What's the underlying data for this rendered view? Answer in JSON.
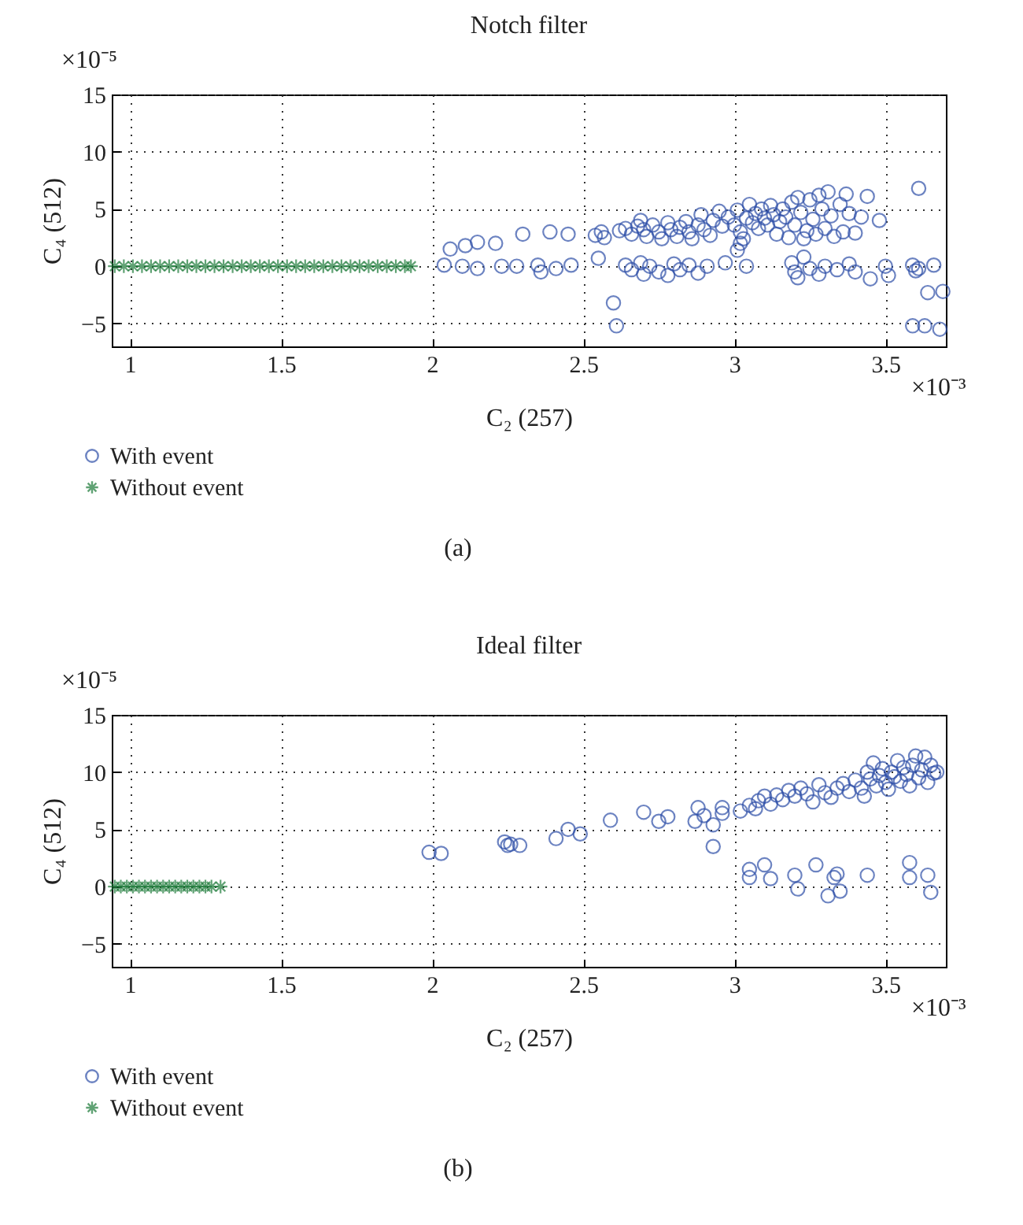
{
  "chart_data": [
    {
      "type": "scatter",
      "title": "Notch filter",
      "xlabel": "C₂ (257)",
      "ylabel": "C₄ (512)",
      "annotations": [
        "×10⁻⁵",
        "×10⁻³",
        "(a)"
      ],
      "xlim": [
        0.94,
        3.7
      ],
      "ylim": [
        -7,
        15
      ],
      "xticks": [
        1,
        1.5,
        2,
        2.5,
        3,
        3.5
      ],
      "yticks": [
        -5,
        0,
        5,
        10,
        15
      ],
      "grid": true,
      "legend": "bottom",
      "series": [
        {
          "name": "With event",
          "color": "#2e4fa8",
          "marker": "circle",
          "x": [
            2.04,
            2.1,
            2.06,
            2.11,
            2.15,
            2.21,
            2.3,
            2.39,
            2.45,
            2.54,
            2.56,
            2.57,
            2.55,
            2.6,
            2.61,
            2.15,
            2.23,
            2.28,
            2.35,
            2.36,
            2.41,
            2.46,
            3.61,
            3.59,
            3.63,
            3.68,
            3.64,
            3.69,
            2.62,
            2.64,
            2.66,
            2.68,
            2.69,
            2.7,
            2.71,
            2.73,
            2.75,
            2.76,
            2.78,
            2.79,
            2.81,
            2.82,
            2.84,
            2.85,
            2.86,
            2.88,
            2.89,
            2.9,
            2.92,
            2.93,
            2.95,
            2.96,
            2.98,
            3.0,
            3.01,
            3.02,
            3.03,
            3.04,
            3.05,
            3.06,
            3.07,
            3.08,
            3.09,
            3.1,
            3.11,
            3.12,
            3.13,
            3.14,
            3.15,
            3.16,
            3.17,
            3.18,
            3.19,
            3.2,
            3.21,
            3.22,
            3.23,
            3.24,
            3.25,
            3.26,
            3.27,
            3.28,
            3.29,
            3.3,
            3.31,
            3.32,
            3.33,
            3.35,
            3.36,
            3.37,
            3.38,
            3.4,
            3.42,
            3.44,
            3.48,
            3.01,
            3.02,
            2.64,
            2.66,
            2.69,
            2.7,
            2.72,
            2.75,
            2.78,
            2.8,
            2.82,
            2.85,
            2.88,
            2.91,
            2.97,
            3.04,
            3.19,
            3.2,
            3.21,
            3.23,
            3.25,
            3.28,
            3.3,
            3.34,
            3.38,
            3.4,
            3.45,
            3.5,
            3.51,
            3.59,
            3.6,
            3.66,
            3.61
          ],
          "values": [
            0.1,
            0,
            1.5,
            1.8,
            2.1,
            2,
            2.8,
            3,
            2.8,
            2.7,
            3,
            2.5,
            0.7,
            -3.2,
            -5.2,
            -0.2,
            0,
            0,
            0.1,
            -0.5,
            -0.2,
            0.1,
            6.8,
            -5.2,
            -5.2,
            -5.5,
            -2.3,
            -2.2,
            3.1,
            3.3,
            2.8,
            3.5,
            4,
            3.2,
            2.6,
            3.6,
            3,
            2.4,
            3.8,
            3.2,
            2.6,
            3.4,
            3.9,
            3,
            2.4,
            3.6,
            4.5,
            3.2,
            2.7,
            4,
            4.8,
            3.5,
            4.3,
            3.6,
            4.9,
            3,
            2.4,
            4.2,
            5.4,
            3.8,
            4.6,
            3.3,
            5,
            4.2,
            3.6,
            5.3,
            4.5,
            2.8,
            3.9,
            5,
            4.3,
            2.5,
            5.6,
            3.6,
            6,
            4.7,
            2.4,
            3.1,
            5.8,
            4.1,
            2.8,
            6.2,
            5,
            3.3,
            6.5,
            4.4,
            2.6,
            5.4,
            3,
            6.3,
            4.6,
            2.9,
            4.3,
            6.1,
            4,
            1.4,
            2,
            0.1,
            -0.3,
            0.3,
            -0.7,
            0,
            -0.5,
            -0.8,
            0.2,
            -0.3,
            0.1,
            -0.6,
            0,
            0.3,
            0,
            0.3,
            -0.5,
            -1,
            0.8,
            -0.2,
            -0.7,
            0,
            -0.3,
            0.2,
            -0.5,
            -1.1,
            0,
            -0.8,
            0.1,
            -0.4,
            0.1,
            -0.2
          ]
        },
        {
          "name": "Without event",
          "color": "#1e7b3a",
          "marker": "cross",
          "x": [
            0.95,
            0.98,
            1.01,
            1.04,
            1.07,
            1.1,
            1.13,
            1.16,
            1.19,
            1.22,
            1.25,
            1.28,
            1.31,
            1.34,
            1.37,
            1.4,
            1.43,
            1.46,
            1.49,
            1.52,
            1.55,
            1.58,
            1.61,
            1.64,
            1.67,
            1.7,
            1.73,
            1.76,
            1.79,
            1.82,
            1.85,
            1.88,
            1.91,
            1.93
          ],
          "values": [
            0,
            0,
            0,
            0,
            0,
            0,
            0,
            0,
            0,
            0,
            0,
            0,
            0,
            0,
            0,
            0,
            0,
            0,
            0,
            0,
            0,
            0,
            0,
            0,
            0,
            0,
            0,
            0,
            0,
            0,
            0,
            0,
            0,
            0
          ]
        }
      ]
    },
    {
      "type": "scatter",
      "title": "Ideal filter",
      "xlabel": "C₂ (257)",
      "ylabel": "C₄ (512)",
      "annotations": [
        "×10⁻⁵",
        "×10⁻³",
        "(b)"
      ],
      "xlim": [
        0.94,
        3.7
      ],
      "ylim": [
        -7,
        15
      ],
      "xticks": [
        1,
        1.5,
        2,
        2.5,
        3,
        3.5
      ],
      "yticks": [
        -5,
        0,
        5,
        10,
        15
      ],
      "grid": true,
      "legend": "bottom",
      "series": [
        {
          "name": "With event",
          "color": "#2e4fa8",
          "marker": "circle",
          "x": [
            1.99,
            2.03,
            2.24,
            2.25,
            2.26,
            2.29,
            2.41,
            2.45,
            2.49,
            2.59,
            2.7,
            2.75,
            2.78,
            2.87,
            2.88,
            2.9,
            2.93,
            2.93,
            2.96,
            2.96,
            3.02,
            3.05,
            3.07,
            3.08,
            3.1,
            3.12,
            3.14,
            3.16,
            3.18,
            3.2,
            3.22,
            3.24,
            3.26,
            3.28,
            3.3,
            3.32,
            3.34,
            3.36,
            3.38,
            3.4,
            3.42,
            3.43,
            3.44,
            3.45,
            3.46,
            3.47,
            3.48,
            3.49,
            3.5,
            3.51,
            3.52,
            3.53,
            3.54,
            3.55,
            3.56,
            3.57,
            3.58,
            3.59,
            3.6,
            3.61,
            3.62,
            3.63,
            3.64,
            3.65,
            3.66,
            3.67,
            3.05,
            3.05,
            3.1,
            3.12,
            3.2,
            3.21,
            3.27,
            3.31,
            3.33,
            3.34,
            3.35,
            3.44,
            3.58,
            3.58,
            3.64,
            3.65
          ],
          "values": [
            3,
            2.9,
            3.9,
            3.6,
            3.7,
            3.6,
            4.2,
            5,
            4.6,
            5.8,
            6.5,
            5.7,
            6.1,
            5.7,
            6.9,
            6.2,
            5.4,
            3.5,
            6.9,
            6.4,
            6.6,
            7.1,
            6.8,
            7.5,
            7.9,
            7.2,
            8,
            7.6,
            8.4,
            7.9,
            8.6,
            8.1,
            7.4,
            8.9,
            8.2,
            7.8,
            8.6,
            9,
            8.3,
            9.3,
            8.6,
            7.9,
            10,
            9.4,
            10.8,
            8.8,
            9.7,
            10.3,
            9.1,
            8.5,
            10,
            9.6,
            11,
            9.2,
            10.4,
            9.8,
            8.8,
            10.6,
            11.4,
            9.5,
            10.2,
            11.3,
            9.1,
            10.6,
            9.9,
            10,
            0.8,
            1.5,
            1.9,
            0.7,
            1,
            -0.2,
            1.9,
            -0.8,
            0.8,
            1.1,
            -0.4,
            1,
            2.1,
            0.8,
            1,
            -0.5
          ]
        },
        {
          "name": "Without event",
          "color": "#1e7b3a",
          "marker": "cross",
          "x": [
            0.95,
            0.97,
            0.99,
            1.01,
            1.03,
            1.05,
            1.07,
            1.09,
            1.11,
            1.13,
            1.15,
            1.17,
            1.19,
            1.21,
            1.23,
            1.25,
            1.27,
            1.3
          ],
          "values": [
            0,
            0,
            0,
            0,
            0,
            0,
            0,
            0,
            0,
            0,
            0,
            0,
            0,
            0,
            0,
            0,
            0,
            0
          ]
        }
      ]
    }
  ]
}
